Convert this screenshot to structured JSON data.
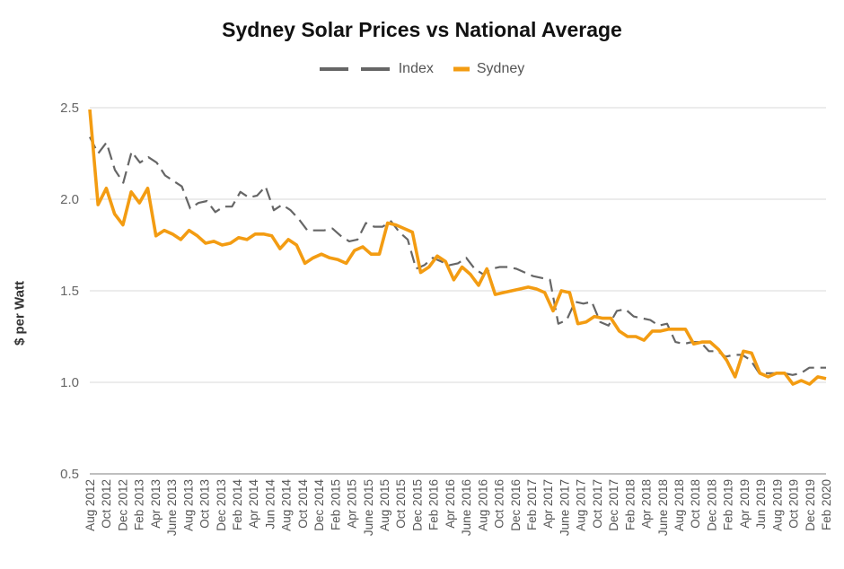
{
  "chart_data": {
    "type": "line",
    "title": "Sydney Solar Prices vs National Average",
    "ylabel": "$ per Watt",
    "xlabel": "",
    "ylim": [
      0.5,
      2.5
    ],
    "yticks": [
      "0.5",
      "1.0",
      "1.5",
      "2.0",
      "2.5"
    ],
    "grid": true,
    "legend_position": "top-center",
    "x_tick_labels": [
      "Aug 2012",
      "Oct 2012",
      "Dec 2012",
      "Feb 2013",
      "Apr 2013",
      "June 2013",
      "Aug 2013",
      "Oct 2013",
      "Dec 2013",
      "Feb 2014",
      "Apr 2014",
      "Jun 2014",
      "Aug 2014",
      "Oct 2014",
      "Dec 2014",
      "Feb 2015",
      "Apr 2015",
      "June 2015",
      "Aug 2015",
      "Oct 2015",
      "Dec 2015",
      "Feb 2016",
      "Apr 2016",
      "June 2016",
      "Aug 2016",
      "Oct 2016",
      "Dec 2016",
      "Feb 2017",
      "Apr 2017",
      "June 2017",
      "Aug 2017",
      "Oct 2017",
      "Dec 2017",
      "Feb 2018",
      "Apr 2018",
      "June 2018",
      "Aug 2018",
      "Oct 2018",
      "Dec 2018",
      "Feb 2019",
      "Apr 2019",
      "Jun 2019",
      "Aug 2019",
      "Oct 2019",
      "Dec 2019",
      "Feb 2020"
    ],
    "series": [
      {
        "name": "Index",
        "color": "#666666",
        "style": "dashed",
        "values": [
          2.34,
          2.25,
          2.31,
          2.16,
          2.09,
          2.26,
          2.2,
          2.23,
          2.2,
          2.13,
          2.1,
          2.07,
          1.95,
          1.98,
          1.99,
          1.93,
          1.96,
          1.96,
          2.04,
          2.01,
          2.02,
          2.07,
          1.94,
          1.97,
          1.94,
          1.89,
          1.83,
          1.83,
          1.83,
          1.84,
          1.8,
          1.77,
          1.78,
          1.87,
          1.85,
          1.85,
          1.88,
          1.82,
          1.78,
          1.62,
          1.64,
          1.68,
          1.66,
          1.64,
          1.65,
          1.68,
          1.62,
          1.59,
          1.62,
          1.63,
          1.63,
          1.62,
          1.6,
          1.58,
          1.57,
          1.56,
          1.32,
          1.34,
          1.44,
          1.43,
          1.44,
          1.33,
          1.31,
          1.39,
          1.4,
          1.36,
          1.35,
          1.34,
          1.31,
          1.32,
          1.22,
          1.21,
          1.22,
          1.22,
          1.17,
          1.17,
          1.14,
          1.15,
          1.15,
          1.12,
          1.05,
          1.05,
          1.05,
          1.05,
          1.04,
          1.05,
          1.08,
          1.08,
          1.08
        ]
      },
      {
        "name": "Sydney",
        "color": "#f39c12",
        "style": "solid",
        "values": [
          2.49,
          1.97,
          2.06,
          1.92,
          1.86,
          2.04,
          1.98,
          2.06,
          1.8,
          1.83,
          1.81,
          1.78,
          1.83,
          1.8,
          1.76,
          1.77,
          1.75,
          1.76,
          1.79,
          1.78,
          1.81,
          1.81,
          1.8,
          1.73,
          1.78,
          1.75,
          1.65,
          1.68,
          1.7,
          1.68,
          1.67,
          1.65,
          1.72,
          1.74,
          1.7,
          1.7,
          1.87,
          1.86,
          1.84,
          1.82,
          1.6,
          1.63,
          1.69,
          1.66,
          1.56,
          1.63,
          1.59,
          1.53,
          1.62,
          1.48,
          1.49,
          1.5,
          1.51,
          1.52,
          1.51,
          1.49,
          1.39,
          1.5,
          1.49,
          1.32,
          1.33,
          1.36,
          1.35,
          1.35,
          1.28,
          1.25,
          1.25,
          1.23,
          1.28,
          1.28,
          1.29,
          1.29,
          1.29,
          1.21,
          1.22,
          1.22,
          1.18,
          1.12,
          1.03,
          1.17,
          1.16,
          1.05,
          1.03,
          1.05,
          1.05,
          0.99,
          1.01,
          0.99,
          1.03,
          1.02
        ]
      }
    ]
  }
}
